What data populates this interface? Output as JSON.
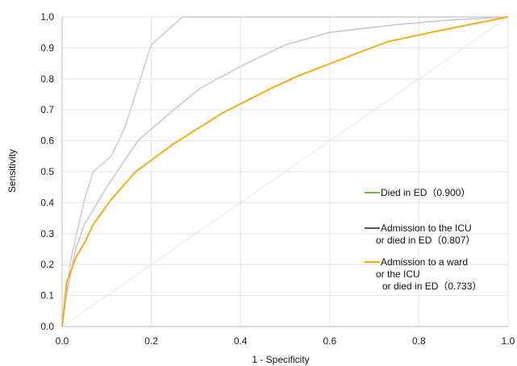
{
  "chart_data": {
    "type": "line",
    "xlabel": "1 - Specificity",
    "ylabel": "Sensitivity",
    "xlim": [
      0,
      1
    ],
    "ylim": [
      0,
      1
    ],
    "x_ticks": [
      "0.0",
      "0.2",
      "0.4",
      "0.6",
      "0.8",
      "1.0"
    ],
    "y_ticks": [
      "0.0",
      "0.1",
      "0.2",
      "0.3",
      "0.4",
      "0.5",
      "0.6",
      "0.7",
      "0.8",
      "0.9",
      "1.0"
    ],
    "grid": true,
    "legend_position": "right",
    "series": [
      {
        "name": "Died in ED（0.900）",
        "color": "#70b843",
        "x": [
          0,
          0.005,
          0.02,
          0.05,
          0.07,
          0.11,
          0.14,
          0.2,
          0.27,
          1.0
        ],
        "y": [
          0,
          0.07,
          0.22,
          0.41,
          0.5,
          0.55,
          0.64,
          0.91,
          1.0,
          1.0
        ]
      },
      {
        "name": "Admission to the ICU\nor died in ED（0.807）",
        "color": "#44546a",
        "x": [
          0,
          0.01,
          0.03,
          0.05,
          0.1,
          0.17,
          0.25,
          0.31,
          0.4,
          0.5,
          0.6,
          0.75,
          0.87,
          1.0
        ],
        "y": [
          0,
          0.1,
          0.25,
          0.33,
          0.45,
          0.6,
          0.7,
          0.77,
          0.84,
          0.91,
          0.95,
          0.975,
          0.99,
          1.0
        ]
      },
      {
        "name": "Admission to a ward\nor the ICU\nor died in ED（0.733）",
        "color": "#ffa500",
        "x": [
          0,
          0.005,
          0.01,
          0.03,
          0.05,
          0.07,
          0.11,
          0.165,
          0.25,
          0.36,
          0.47,
          0.53,
          0.62,
          0.73,
          0.86,
          1.0
        ],
        "y": [
          0,
          0.07,
          0.14,
          0.22,
          0.27,
          0.33,
          0.41,
          0.5,
          0.59,
          0.69,
          0.77,
          0.81,
          0.86,
          0.92,
          0.96,
          1.0
        ]
      },
      {
        "name": "",
        "color": "#e6e6e6",
        "x": [
          0,
          1
        ],
        "y": [
          0,
          1
        ]
      }
    ]
  }
}
